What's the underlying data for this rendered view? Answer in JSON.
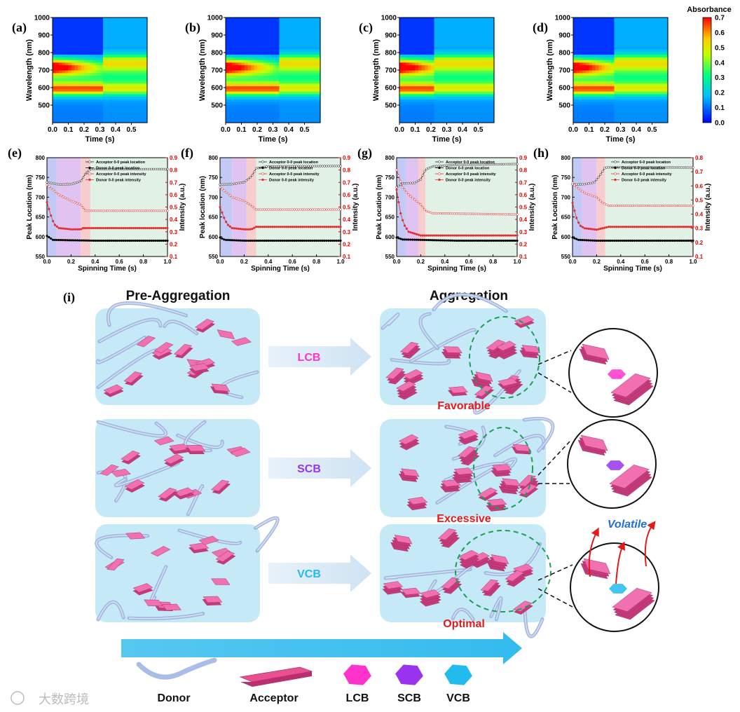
{
  "colors": {
    "lcb": "#ff33cc",
    "scb": "#9933ee",
    "vcb": "#22bbee",
    "acceptor": "#e8508f",
    "box_bg": "#c6e9f7",
    "arrow_red": "#e41a1a",
    "big_arrow": "#43c3ee",
    "donor": "#9fb8e8"
  },
  "icons": [
    "donor-ribbon-icon",
    "acceptor-plate-icon",
    "lcb-hexagon-icon",
    "scb-hexagon-icon",
    "vcb-hexagon-icon"
  ],
  "panels_top": [
    {
      "label": "(a)",
      "time_boundary": 0.32
    },
    {
      "label": "(b)",
      "time_boundary": 0.33
    },
    {
      "label": "(c)",
      "time_boundary": 0.22
    },
    {
      "label": "(d)",
      "time_boundary": 0.26
    }
  ],
  "heatmap_axes": {
    "xlabel": "Time (s)",
    "ylabel": "Wavelength (nm)",
    "xticks": [
      "0.0",
      "0.1",
      "0.2",
      "0.3",
      "0.4",
      "0.5"
    ],
    "yticks": [
      "1000",
      "900",
      "800",
      "700",
      "600",
      "500"
    ],
    "colorbar_title": "Absorbance",
    "colorbar_ticks": [
      "0.7",
      "0.6",
      "0.5",
      "0.4",
      "0.3",
      "0.2",
      "0.1",
      "0.0"
    ]
  },
  "panels_mid": [
    {
      "label": "(e)",
      "left_ylabel": "Peak Location (nm)",
      "right_ticks": [
        "0.9",
        "0.8",
        "0.7",
        "0.6",
        "0.5",
        "0.4",
        "0.3",
        "0.2",
        "0.1"
      ]
    },
    {
      "label": "(f)",
      "left_ylabel": "Peak location (nm)",
      "right_ticks": [
        "0.9",
        "0.8",
        "0.7",
        "0.6",
        "0.5",
        "0.4",
        "0.3",
        "0.2",
        "0.1"
      ]
    },
    {
      "label": "(g)",
      "left_ylabel": "Peak Location (nm)",
      "right_ticks": [
        "0.9",
        "0.8",
        "0.7",
        "0.6",
        "0.5",
        "0.4",
        "0.3",
        "0.2",
        "0.1"
      ]
    },
    {
      "label": "(h)",
      "left_ylabel": "Peak Location (nm)",
      "right_ticks": [
        "0.8",
        "0.7",
        "0.6",
        "0.5",
        "0.4",
        "0.3",
        "0.2",
        "0.1"
      ]
    }
  ],
  "line_axes": {
    "xlabel": "Spinning Time (s)",
    "right_ylabel": "Intensity (a.u.)",
    "xticks": [
      "0.0",
      "0.2",
      "0.4",
      "0.6",
      "0.8",
      "1.0"
    ],
    "yticks": [
      "800",
      "750",
      "700",
      "650",
      "600",
      "550"
    ],
    "legend": [
      "Acceptor 0-0 peak location",
      "Donor 0-0 peak location",
      "Acceptor 0-0 peak intensity",
      "Donor 0-0 peak intensity"
    ]
  },
  "chart_data": [
    {
      "type": "heatmap",
      "panel": "(a)",
      "title": "",
      "xlabel": "Time (s)",
      "ylabel": "Wavelength (nm)",
      "xlim": [
        0.0,
        0.6
      ],
      "ylim": [
        400,
        1000
      ],
      "z_label": "Absorbance",
      "z_range": [
        0.0,
        0.7
      ],
      "bands_nm": [
        720,
        595
      ],
      "transition_time_s": 0.32
    },
    {
      "type": "heatmap",
      "panel": "(b)",
      "title": "",
      "xlabel": "Time (s)",
      "ylabel": "Wavelength (nm)",
      "xlim": [
        0.0,
        0.6
      ],
      "ylim": [
        400,
        1000
      ],
      "z_label": "Absorbance",
      "z_range": [
        0.0,
        0.7
      ],
      "bands_nm": [
        720,
        595
      ],
      "transition_time_s": 0.33
    },
    {
      "type": "heatmap",
      "panel": "(c)",
      "title": "",
      "xlabel": "Time (s)",
      "ylabel": "Wavelength (nm)",
      "xlim": [
        0.0,
        0.6
      ],
      "ylim": [
        400,
        1000
      ],
      "z_label": "Absorbance",
      "z_range": [
        0.0,
        0.7
      ],
      "bands_nm": [
        720,
        595
      ],
      "transition_time_s": 0.22
    },
    {
      "type": "heatmap",
      "panel": "(d)",
      "title": "",
      "xlabel": "Time (s)",
      "ylabel": "Wavelength (nm)",
      "xlim": [
        0.0,
        0.6
      ],
      "ylim": [
        400,
        1000
      ],
      "z_label": "Absorbance",
      "z_range": [
        0.0,
        0.7
      ],
      "bands_nm": [
        720,
        595
      ],
      "transition_time_s": 0.26
    },
    {
      "type": "line",
      "panel": "(e)",
      "xlabel": "Spinning Time (s)",
      "ylabel": "Peak Location (nm)",
      "y2label": "Intensity (a.u.)",
      "xlim": [
        0,
        1
      ],
      "ylim": [
        550,
        800
      ],
      "y2lim": [
        0.1,
        0.9
      ],
      "shaded_regions": [
        [
          0,
          0.08
        ],
        [
          0.08,
          0.28
        ],
        [
          0.28,
          0.36
        ],
        [
          0.36,
          1.0
        ]
      ],
      "series": [
        {
          "name": "Acceptor 0-0 peak location",
          "axis": "left",
          "x": [
            0.0,
            0.1,
            0.2,
            0.28,
            0.32,
            0.36,
            1.0
          ],
          "y": [
            738,
            732,
            733,
            740,
            760,
            771,
            771
          ]
        },
        {
          "name": "Donor 0-0 peak location",
          "axis": "left",
          "x": [
            0.0,
            0.05,
            0.2,
            0.4,
            1.0
          ],
          "y": [
            602,
            592,
            591,
            590,
            590
          ]
        },
        {
          "name": "Acceptor 0-0 peak intensity",
          "axis": "right",
          "x": [
            0.0,
            0.05,
            0.1,
            0.2,
            0.28,
            0.32,
            0.36,
            1.0
          ],
          "y": [
            0.68,
            0.64,
            0.6,
            0.55,
            0.52,
            0.47,
            0.47,
            0.47
          ]
        },
        {
          "name": "Donor 0-0 peak intensity",
          "axis": "right",
          "x": [
            0.0,
            0.03,
            0.06,
            0.1,
            0.2,
            0.28,
            0.3,
            1.0
          ],
          "y": [
            0.54,
            0.44,
            0.36,
            0.33,
            0.32,
            0.32,
            0.33,
            0.33
          ]
        }
      ]
    },
    {
      "type": "line",
      "panel": "(f)",
      "xlabel": "Spinning Time (s)",
      "ylabel": "Peak location (nm)",
      "y2label": "Intensity (a.u.)",
      "xlim": [
        0,
        1
      ],
      "ylim": [
        550,
        800
      ],
      "y2lim": [
        0.1,
        0.9
      ],
      "shaded_regions": [
        [
          0,
          0.1
        ],
        [
          0.1,
          0.22
        ],
        [
          0.22,
          0.3
        ],
        [
          0.3,
          1.0
        ]
      ],
      "series": [
        {
          "name": "Acceptor 0-0 peak location",
          "axis": "left",
          "x": [
            0.0,
            0.1,
            0.2,
            0.26,
            0.3,
            0.4,
            1.0
          ],
          "y": [
            732,
            733,
            738,
            752,
            773,
            778,
            779
          ]
        },
        {
          "name": "Donor 0-0 peak location",
          "axis": "left",
          "x": [
            0.0,
            0.04,
            0.2,
            1.0
          ],
          "y": [
            598,
            592,
            590,
            590
          ]
        },
        {
          "name": "Acceptor 0-0 peak intensity",
          "axis": "right",
          "x": [
            0.0,
            0.05,
            0.1,
            0.2,
            0.26,
            0.3,
            1.0
          ],
          "y": [
            0.66,
            0.62,
            0.58,
            0.55,
            0.51,
            0.48,
            0.48
          ]
        },
        {
          "name": "Donor 0-0 peak intensity",
          "axis": "right",
          "x": [
            0.0,
            0.03,
            0.06,
            0.1,
            0.2,
            0.26,
            0.3,
            1.0
          ],
          "y": [
            0.5,
            0.42,
            0.36,
            0.33,
            0.32,
            0.32,
            0.34,
            0.34
          ]
        }
      ]
    },
    {
      "type": "line",
      "panel": "(g)",
      "xlabel": "Spinning Time (s)",
      "ylabel": "Peak Location (nm)",
      "y2label": "Intensity (a.u.)",
      "xlim": [
        0,
        1
      ],
      "ylim": [
        550,
        800
      ],
      "y2lim": [
        0.1,
        0.9
      ],
      "shaded_regions": [
        [
          0,
          0.08
        ],
        [
          0.08,
          0.18
        ],
        [
          0.18,
          0.24
        ],
        [
          0.24,
          1.0
        ]
      ],
      "series": [
        {
          "name": "Acceptor 0-0 peak location",
          "axis": "left",
          "x": [
            0.0,
            0.05,
            0.15,
            0.2,
            0.24,
            0.3,
            0.5,
            1.0
          ],
          "y": [
            725,
            735,
            736,
            745,
            770,
            778,
            782,
            784
          ]
        },
        {
          "name": "Donor 0-0 peak location",
          "axis": "left",
          "x": [
            0.0,
            0.05,
            0.2,
            0.5,
            1.0
          ],
          "y": [
            598,
            593,
            592,
            590,
            590
          ]
        },
        {
          "name": "Acceptor 0-0 peak intensity",
          "axis": "right",
          "x": [
            0.0,
            0.05,
            0.1,
            0.2,
            0.24,
            0.3,
            1.0
          ],
          "y": [
            0.8,
            0.66,
            0.6,
            0.52,
            0.47,
            0.45,
            0.44
          ]
        },
        {
          "name": "Donor 0-0 peak intensity",
          "axis": "right",
          "x": [
            0.0,
            0.03,
            0.06,
            0.1,
            0.2,
            0.3,
            1.0
          ],
          "y": [
            0.64,
            0.46,
            0.36,
            0.3,
            0.27,
            0.27,
            0.27
          ]
        }
      ]
    },
    {
      "type": "line",
      "panel": "(h)",
      "xlabel": "Spinning Time (s)",
      "ylabel": "Peak Location (nm)",
      "y2label": "Intensity (a.u.)",
      "xlim": [
        0,
        1
      ],
      "ylim": [
        550,
        800
      ],
      "y2lim": [
        0.1,
        0.8
      ],
      "shaded_regions": [
        [
          0,
          0.08
        ],
        [
          0.08,
          0.2
        ],
        [
          0.2,
          0.27
        ],
        [
          0.27,
          1.0
        ]
      ],
      "series": [
        {
          "name": "Acceptor 0-0 peak location",
          "axis": "left",
          "x": [
            0.0,
            0.1,
            0.18,
            0.22,
            0.27,
            0.35,
            1.0
          ],
          "y": [
            732,
            733,
            737,
            752,
            775,
            776,
            775
          ]
        },
        {
          "name": "Donor 0-0 peak location",
          "axis": "left",
          "x": [
            0.0,
            0.05,
            0.2,
            1.0
          ],
          "y": [
            598,
            592,
            590,
            590
          ]
        },
        {
          "name": "Acceptor 0-0 peak intensity",
          "axis": "right",
          "x": [
            0.0,
            0.05,
            0.1,
            0.2,
            0.25,
            0.3,
            1.0
          ],
          "y": [
            0.62,
            0.58,
            0.55,
            0.52,
            0.48,
            0.46,
            0.46
          ]
        },
        {
          "name": "Donor 0-0 peak intensity",
          "axis": "right",
          "x": [
            0.0,
            0.03,
            0.06,
            0.1,
            0.2,
            0.25,
            0.3,
            1.0
          ],
          "y": [
            0.48,
            0.38,
            0.32,
            0.3,
            0.29,
            0.3,
            0.31,
            0.31
          ]
        }
      ]
    }
  ],
  "panel_i": {
    "label": "(i)",
    "pre_title": "Pre-Aggregation",
    "agg_title": "Aggregation",
    "rows": [
      {
        "method": "LCB",
        "result": "Favorable"
      },
      {
        "method": "SCB",
        "result": "Excessive"
      },
      {
        "method": "VCB",
        "result": "Optimal"
      }
    ],
    "volatile_label": "Volatile",
    "bottom_legend": [
      "Donor",
      "Acceptor",
      "LCB",
      "SCB",
      "VCB"
    ]
  },
  "watermark": "大数跨境"
}
